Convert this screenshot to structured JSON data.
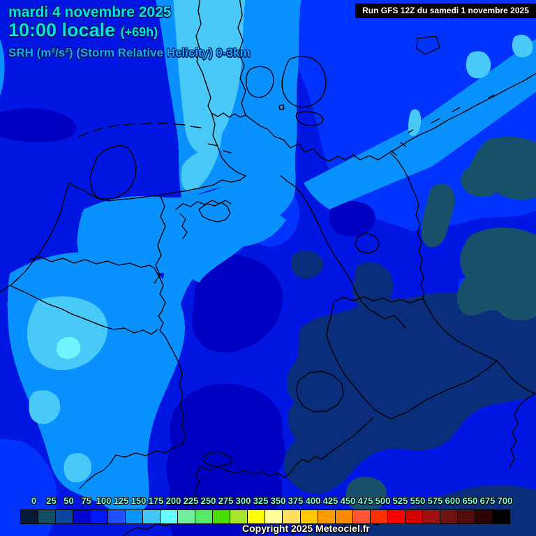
{
  "header": {
    "date": "mardi 4 novembre 2025",
    "time": "10:00 locale",
    "run_offset": "(+69h)",
    "parameter": "SRH (m²/s²) (Storm Relative Helicity) 0-3km",
    "date_color": "#00E4DC",
    "parameter_color": "#17A9F7"
  },
  "run_box": {
    "label": "Run GFS 12Z du samedi 1 novembre 2025",
    "bg": "#000000",
    "text_color": "#FFFFFF"
  },
  "scale": {
    "labels": [
      "0",
      "25",
      "50",
      "75",
      "100",
      "125",
      "150",
      "175",
      "200",
      "225",
      "250",
      "275",
      "300",
      "325",
      "350",
      "375",
      "400",
      "425",
      "450",
      "475",
      "500",
      "525",
      "550",
      "575",
      "600",
      "650",
      "675",
      "700"
    ],
    "colors": [
      "#081A38",
      "#134E62",
      "#0C459C",
      "#0005D0",
      "#0018FF",
      "#2050FF",
      "#0995FF",
      "#41C8F7",
      "#66FFFF",
      "#70EE9A",
      "#55EB66",
      "#44DF00",
      "#A5E52A",
      "#FFFF00",
      "#FFFF99",
      "#FFE05E",
      "#FFC800",
      "#FF9C00",
      "#FF8A00",
      "#FF5533",
      "#FF3000",
      "#FA0000",
      "#D40000",
      "#9E1212",
      "#6E1414",
      "#520C0C",
      "#2E0404",
      "#000000"
    ],
    "label_color": "#76FFE1"
  },
  "footer": {
    "copyright": "Copyright 2025 Meteociel.fr"
  },
  "map_palette": {
    "base": "#0016E2",
    "bright": "#0133FF",
    "sky": "#0991FF",
    "light_sky": "#49C9F8",
    "cyan": "#72F4FF",
    "dark": "#0000C2",
    "navy": "#0B2E7C",
    "slate": "#16506A",
    "border": "#000000"
  }
}
